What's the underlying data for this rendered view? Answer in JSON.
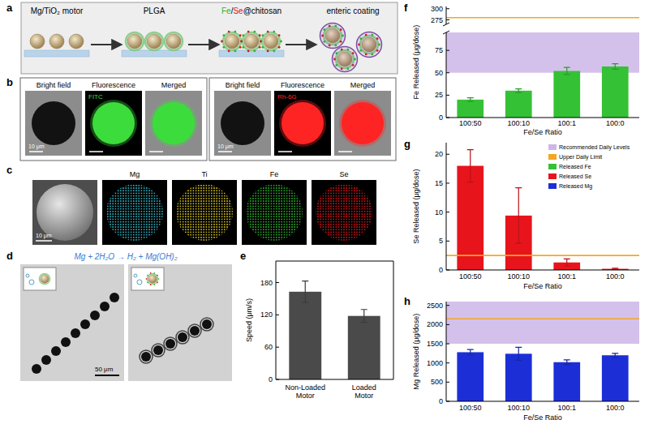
{
  "panels": {
    "a": {
      "label": "a",
      "steps": [
        {
          "parts": [
            {
              "text": "Mg/TiO₂ motor",
              "color": "#000000"
            }
          ]
        },
        {
          "parts": [
            {
              "text": "PLGA",
              "color": "#000000"
            }
          ]
        },
        {
          "parts": [
            {
              "text": "Fe",
              "color": "#2fb52f"
            },
            {
              "text": "/",
              "color": "#000000"
            },
            {
              "text": "Se",
              "color": "#e0141c"
            },
            {
              "text": "@chitosan",
              "color": "#000000"
            }
          ]
        },
        {
          "parts": [
            {
              "text": "enteric coating",
              "color": "#000000"
            }
          ]
        }
      ]
    },
    "b": {
      "label": "b",
      "groups": [
        {
          "columns": [
            "Bright field",
            "Fluorescence",
            "Merged"
          ],
          "dye": "FITC",
          "color": "#3ddc3d",
          "scale_bar": "10 μm"
        },
        {
          "columns": [
            "Bright field",
            "Fluorescence",
            "Merged"
          ],
          "dye": "Rh-6G",
          "color": "#ff2424",
          "scale_bar": "10 μm"
        }
      ]
    },
    "c": {
      "label": "c",
      "scale_bar": "10 μm",
      "maps": [
        {
          "name": "Mg",
          "color": "#35c8d6"
        },
        {
          "name": "Ti",
          "color": "#e6d21e"
        },
        {
          "name": "Fe",
          "color": "#2fc22f"
        },
        {
          "name": "Se",
          "color": "#e8141c"
        }
      ]
    },
    "d": {
      "label": "d",
      "equation": "Mg + 2H₂O → H₂ + Mg(OH)₂",
      "scale_bar": "50 μm"
    }
  },
  "legend_items": [
    {
      "name": "Recommended Daily Levels",
      "color": "#cdb6e8"
    },
    {
      "name": "Upper Daily Limit",
      "color": "#f5a623"
    },
    {
      "name": "Released Fe",
      "color": "#35c135"
    },
    {
      "name": "Released Se",
      "color": "#e8141c"
    },
    {
      "name": "Released Mg",
      "color": "#1c2fd6"
    }
  ],
  "chart_data": [
    {
      "panel": "e",
      "type": "bar",
      "categories": [
        "Non-Loaded Motor",
        "Loaded Motor"
      ],
      "values": [
        163,
        118
      ],
      "errors": [
        20,
        12
      ],
      "color": "#4a4a4a",
      "ylabel": "Speed (μm/s)",
      "ylim": [
        0,
        220
      ],
      "yticks": [
        0,
        60,
        120,
        180
      ]
    },
    {
      "panel": "f",
      "type": "bar",
      "categories": [
        "100:50",
        "100:10",
        "100:1",
        "100:0"
      ],
      "values": [
        20,
        30,
        52,
        57
      ],
      "errors": [
        2,
        2,
        4,
        3
      ],
      "color": "#35c135",
      "ylabel": "Fe Released (μg/dose)",
      "xlabel": "Fe/Se Ratio",
      "ylim": [
        0,
        95
      ],
      "yticks": [
        0,
        25,
        50,
        75
      ],
      "upper_ylim": [
        265,
        305
      ],
      "upper_yticks": [
        275,
        300
      ],
      "recommended_range": [
        50,
        100
      ],
      "upper_limit": 280
    },
    {
      "panel": "g",
      "type": "bar",
      "categories": [
        "100:50",
        "100:10",
        "100:1",
        "100:0"
      ],
      "values": [
        18,
        9.4,
        1.3,
        0.2
      ],
      "errors": [
        2.8,
        4.8,
        0.6,
        0.1
      ],
      "color": "#e8141c",
      "ylabel": "Se Released (μg/dose)",
      "xlabel": "Fe/Se Ratio",
      "ylim": [
        0,
        22
      ],
      "yticks": [
        0,
        5,
        10,
        15,
        20
      ],
      "upper_limit": 2.5
    },
    {
      "panel": "h",
      "type": "bar",
      "categories": [
        "100:50",
        "100:10",
        "100:1",
        "100:0"
      ],
      "values": [
        1280,
        1240,
        1020,
        1200
      ],
      "errors": [
        70,
        170,
        60,
        50
      ],
      "color": "#1c2fd6",
      "ylabel": "Mg Released (μg/dose)",
      "xlabel": "Fe/Se Ratio",
      "ylim": [
        0,
        2600
      ],
      "yticks": [
        0,
        500,
        1000,
        1500,
        2000,
        2500
      ],
      "recommended_range": [
        1500,
        2600
      ],
      "upper_limit": 2150
    }
  ]
}
